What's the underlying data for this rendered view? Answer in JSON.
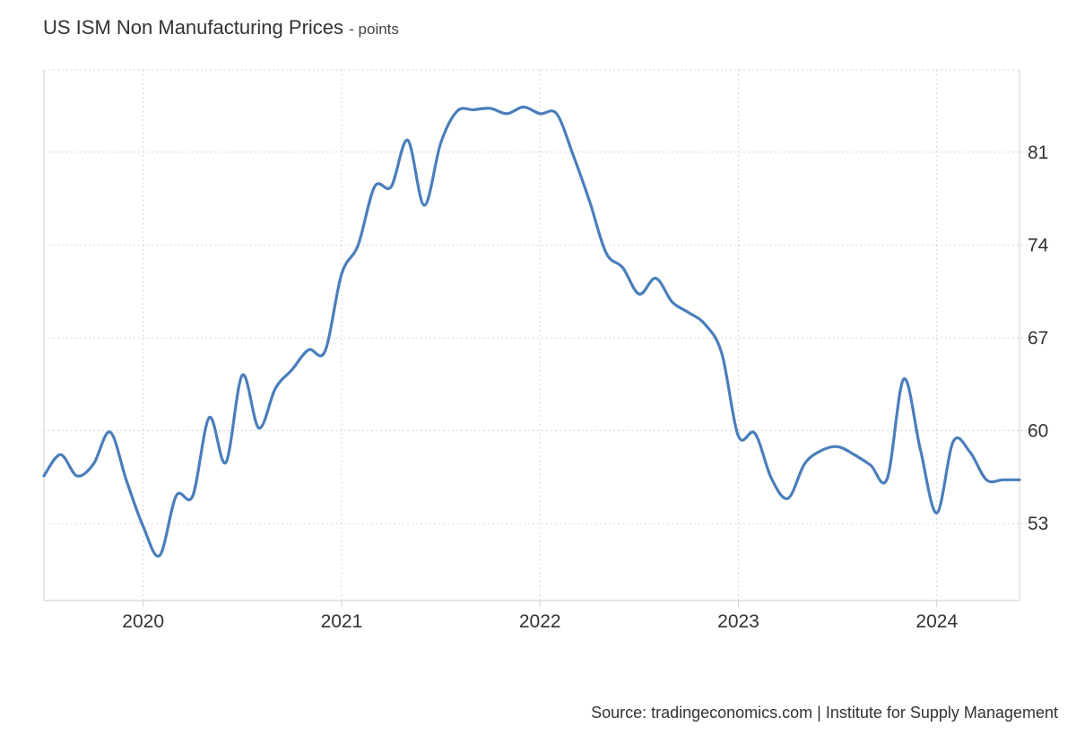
{
  "chart_data": {
    "type": "line",
    "title": "US ISM Non Manufacturing Prices",
    "units": "- points",
    "source": "Source: tradingeconomics.com | Institute for Supply Management",
    "xlabel": "",
    "ylabel": "",
    "x_ticks": [
      "2020",
      "2021",
      "2022",
      "2023",
      "2024"
    ],
    "y_ticks": [
      53,
      60,
      67,
      74,
      81
    ],
    "ylim": [
      47.2,
      87.2
    ],
    "xlim": [
      "2019-07-01",
      "2024-06-01"
    ],
    "grid": true,
    "line_color": "#4a7ebb",
    "series": [
      {
        "x": [
          "2019-07",
          "2019-08",
          "2019-09",
          "2019-10",
          "2019-11",
          "2019-12",
          "2020-01",
          "2020-02",
          "2020-03",
          "2020-04",
          "2020-05",
          "2020-06",
          "2020-07",
          "2020-08",
          "2020-09",
          "2020-10",
          "2020-11",
          "2020-12",
          "2021-01",
          "2021-02",
          "2021-03",
          "2021-04",
          "2021-05",
          "2021-06",
          "2021-07",
          "2021-08",
          "2021-09",
          "2021-10",
          "2021-11",
          "2021-12",
          "2022-01",
          "2022-02",
          "2022-03",
          "2022-04",
          "2022-05",
          "2022-06",
          "2022-07",
          "2022-08",
          "2022-09",
          "2022-10",
          "2022-11",
          "2022-12",
          "2023-01",
          "2023-02",
          "2023-03",
          "2023-04",
          "2023-05",
          "2023-06",
          "2023-07",
          "2023-08",
          "2023-09",
          "2023-10",
          "2023-11",
          "2023-12",
          "2024-01",
          "2024-02",
          "2024-03",
          "2024-04",
          "2024-05",
          "2024-06"
        ],
        "values": [
          56.6,
          58.2,
          56.6,
          57.5,
          59.9,
          56.2,
          52.8,
          50.6,
          55.1,
          55.1,
          61.0,
          57.6,
          64.2,
          60.2,
          63.2,
          64.6,
          66.1,
          66.0,
          71.8,
          74.0,
          78.4,
          78.4,
          81.9,
          77.0,
          81.7,
          84.1,
          84.2,
          84.3,
          83.9,
          84.4,
          83.9,
          83.9,
          80.8,
          77.3,
          73.4,
          72.3,
          70.3,
          71.5,
          69.7,
          68.9,
          68.0,
          65.8,
          59.6,
          59.8,
          56.4,
          54.9,
          57.5,
          58.5,
          58.8,
          58.2,
          57.4,
          56.4,
          63.9,
          58.6,
          53.8,
          59.2,
          58.4,
          56.3,
          56.3,
          56.3
        ]
      }
    ]
  }
}
